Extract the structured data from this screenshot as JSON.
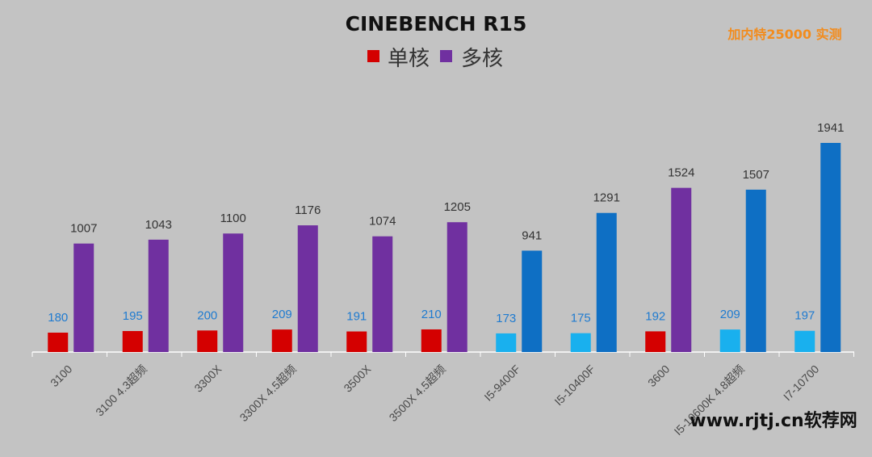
{
  "watermark": "www.rjtj.cn软荐网",
  "chart_data": {
    "type": "bar",
    "title": "CINEBENCH R15",
    "note": "加内特25000 实测",
    "categories": [
      "3100",
      "3100 4.3超频",
      "3300X",
      "3300X 4.5超频",
      "3500X",
      "3500X 4.5超频",
      "I5-9400F",
      "I5-10400F",
      "3600",
      "I5-10600K 4.8超频",
      "I7-10700"
    ],
    "series": [
      {
        "name": "单核",
        "values": [
          180,
          195,
          200,
          209,
          191,
          210,
          173,
          175,
          192,
          209,
          197
        ],
        "colors": [
          "#d40000",
          "#d40000",
          "#d40000",
          "#d40000",
          "#d40000",
          "#d40000",
          "#19b0ee",
          "#19b0ee",
          "#d40000",
          "#19b0ee",
          "#19b0ee"
        ]
      },
      {
        "name": "多核",
        "values": [
          1007,
          1043,
          1100,
          1176,
          1074,
          1205,
          941,
          1291,
          1524,
          1507,
          1941
        ],
        "colors": [
          "#7030a0",
          "#7030a0",
          "#7030a0",
          "#7030a0",
          "#7030a0",
          "#7030a0",
          "#0e6fc4",
          "#0e6fc4",
          "#7030a0",
          "#0e6fc4",
          "#0e6fc4"
        ]
      }
    ],
    "ylim": [
      0,
      2000
    ],
    "legend_position": "top-center",
    "grid": false,
    "colors": {
      "single_core": "#d40000",
      "multi_core": "#7030a0",
      "intel_single": "#19b0ee",
      "intel_multi": "#0e6fc4",
      "background": "#c3c3c3",
      "note": "#f28c1e"
    }
  }
}
